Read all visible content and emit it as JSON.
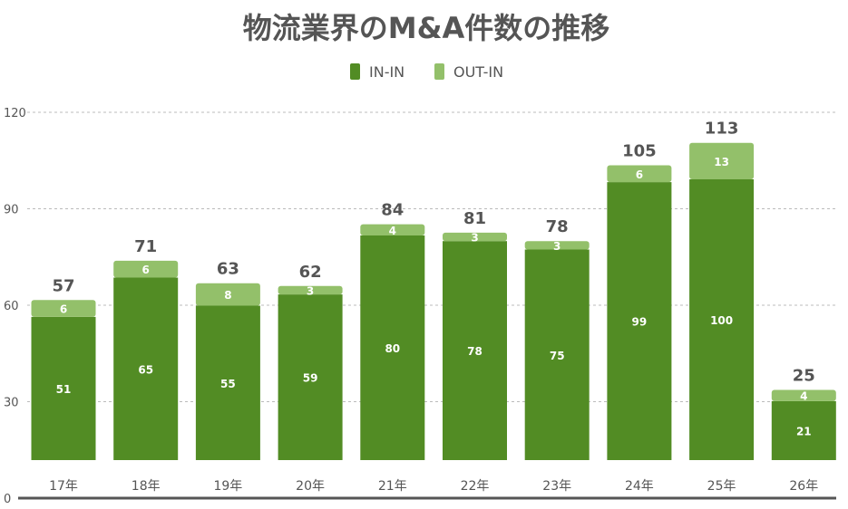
{
  "chart_data": {
    "type": "bar",
    "stacked": true,
    "title": "物流業界のM&A件数の推移",
    "xlabel": "",
    "ylabel": "",
    "ylim": [
      0,
      120
    ],
    "yticks": [
      0,
      30,
      60,
      90,
      120
    ],
    "grid": true,
    "legend_position": "top",
    "categories": [
      "17年",
      "18年",
      "19年",
      "20年",
      "21年",
      "22年",
      "23年",
      "24年",
      "25年",
      "26年"
    ],
    "series": [
      {
        "name": "IN-IN",
        "color": "#528c24",
        "values": [
          51,
          65,
          55,
          59,
          80,
          78,
          75,
          99,
          100,
          21
        ]
      },
      {
        "name": "OUT-IN",
        "color": "#93c06a",
        "values": [
          6,
          6,
          8,
          3,
          4,
          3,
          3,
          6,
          13,
          4
        ]
      }
    ],
    "totals": [
      57,
      71,
      63,
      62,
      84,
      81,
      78,
      105,
      113,
      25
    ]
  }
}
